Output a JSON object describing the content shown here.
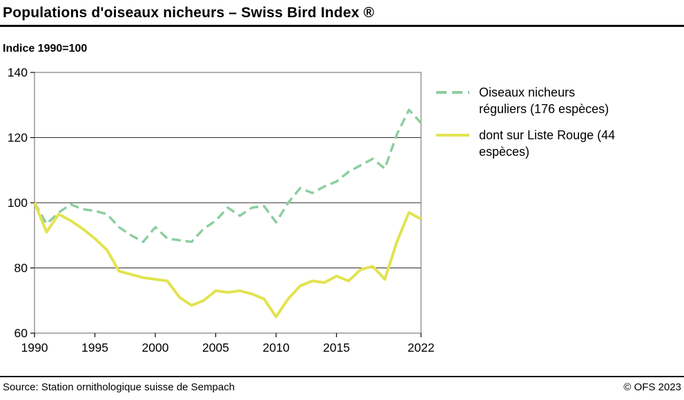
{
  "header": {
    "title": "Populations d'oiseaux nicheurs – Swiss Bird Index ®"
  },
  "subtitle": "Indice 1990=100",
  "legend": [
    {
      "line1": "Oiseaux nicheurs",
      "line2": "réguliers (176 espèces)",
      "color": "#8cce9f",
      "dashed": true
    },
    {
      "line1": "dont sur Liste Rouge (44",
      "line2": "espèces)",
      "color": "#e2e34f",
      "dashed": false
    }
  ],
  "footer": {
    "source": "Source: Station ornithologique suisse de Sempach",
    "copyright": "© OFS 2023"
  },
  "chart_data": {
    "type": "line",
    "title": "Populations d'oiseaux nicheurs – Swiss Bird Index ®",
    "xlabel": "",
    "ylabel": "Indice 1990=100",
    "ylim": [
      60,
      140
    ],
    "yticks": [
      60,
      80,
      100,
      120,
      140
    ],
    "xticks": [
      1990,
      1995,
      2000,
      2005,
      2010,
      2015,
      2022
    ],
    "gridlines_y": [
      80,
      100,
      120
    ],
    "x": [
      1990,
      1991,
      1992,
      1993,
      1994,
      1995,
      1996,
      1997,
      1998,
      1999,
      2000,
      2001,
      2002,
      2003,
      2004,
      2005,
      2006,
      2007,
      2008,
      2009,
      2010,
      2011,
      2012,
      2013,
      2014,
      2015,
      2016,
      2017,
      2018,
      2019,
      2020,
      2021,
      2022
    ],
    "series": [
      {
        "name": "Oiseaux nicheurs réguliers (176 espèces)",
        "color": "#8cce9f",
        "style": "dashed",
        "values": [
          100,
          93.5,
          97,
          99.5,
          98,
          97.5,
          96.5,
          92.5,
          90,
          88,
          92.5,
          89,
          88.5,
          88,
          92,
          94.5,
          98.5,
          96,
          98.5,
          99,
          94,
          100,
          104.5,
          103,
          105,
          106.5,
          109.5,
          111.5,
          113.5,
          110.5,
          121,
          128.5,
          124.5
        ]
      },
      {
        "name": "dont sur Liste Rouge (44 espèces)",
        "color": "#e2e34f",
        "style": "solid",
        "values": [
          100,
          91,
          96.5,
          94.5,
          92,
          89,
          85.5,
          79,
          78,
          77,
          76.5,
          76,
          71,
          68.5,
          70,
          73,
          72.5,
          73,
          72,
          70.5,
          65,
          70.5,
          74.5,
          76,
          75.5,
          77.5,
          76,
          79.5,
          80.5,
          76.5,
          88,
          97,
          95
        ]
      }
    ]
  }
}
